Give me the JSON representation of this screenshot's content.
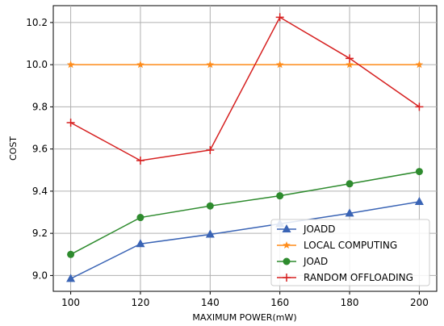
{
  "chart_data": {
    "type": "line",
    "title": "",
    "xlabel": "MAXIMUM POWER(mW)",
    "ylabel": "COST",
    "x": [
      100,
      120,
      140,
      160,
      180,
      200
    ],
    "xticks": [
      "100",
      "120",
      "140",
      "160",
      "180",
      "200"
    ],
    "yticks": [
      "9.0",
      "9.2",
      "9.4",
      "9.6",
      "9.8",
      "10.0",
      "10.2"
    ],
    "xlim": [
      95,
      205
    ],
    "ylim": [
      8.925,
      10.28
    ],
    "grid": true,
    "legend_position": "lower-right",
    "series": [
      {
        "name": "JOADD",
        "color": "#3a64b5",
        "marker": "triangle",
        "values": [
          8.985,
          9.15,
          9.195,
          9.245,
          9.295,
          9.35
        ]
      },
      {
        "name": "LOCAL COMPUTING",
        "color": "#ff8c1a",
        "marker": "star",
        "values": [
          10.0,
          10.0,
          10.0,
          10.0,
          10.0,
          10.0
        ]
      },
      {
        "name": "JOAD",
        "color": "#2e8b2e",
        "marker": "circle",
        "values": [
          9.1,
          9.275,
          9.33,
          9.378,
          9.435,
          9.493
        ]
      },
      {
        "name": "RANDOM OFFLOADING",
        "color": "#d62020",
        "marker": "plus",
        "values": [
          9.725,
          9.545,
          9.595,
          10.225,
          10.03,
          9.8
        ]
      }
    ]
  }
}
